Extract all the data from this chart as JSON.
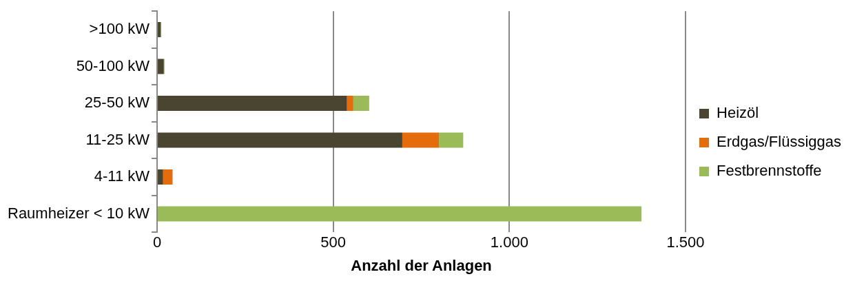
{
  "chart_data": {
    "type": "bar",
    "orientation": "horizontal",
    "stacked": true,
    "xlabel": "Anzahl der Anlagen",
    "categories": [
      ">100 kW",
      "50-100 kW",
      "25-50 kW",
      "11-25 kW",
      "4-11 kW",
      "Raumheizer < 10 kW"
    ],
    "series": [
      {
        "name": "Heizöl",
        "color": "#4a4530",
        "values": [
          10,
          19,
          539,
          696,
          17,
          0
        ]
      },
      {
        "name": "Erdgas/Flüssiggas",
        "color": "#e46c0a",
        "values": [
          0,
          0,
          18,
          104,
          27,
          0
        ]
      },
      {
        "name": "Festbrennstoffe",
        "color": "#9bbb59",
        "values": [
          2,
          2,
          45,
          69,
          0,
          1375
        ]
      }
    ],
    "xlim": [
      0,
      1500
    ],
    "xticks": [
      0,
      500,
      {
        "value": 1000,
        "label": "1.000"
      },
      {
        "value": 1500,
        "label": "1.500"
      }
    ],
    "grid": "x",
    "legend": "right"
  }
}
